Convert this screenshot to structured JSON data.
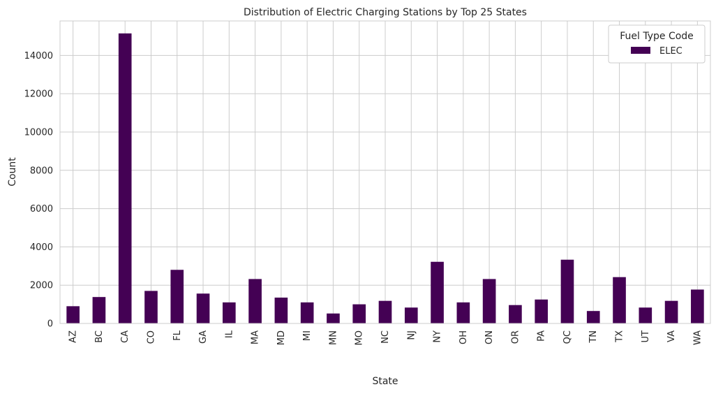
{
  "chart_data": {
    "type": "bar",
    "title": "Distribution of Electric Charging Stations by Top 25 States",
    "xlabel": "State",
    "ylabel": "Count",
    "categories": [
      "AZ",
      "BC",
      "CA",
      "CO",
      "FL",
      "GA",
      "IL",
      "MA",
      "MD",
      "MI",
      "MN",
      "MO",
      "NC",
      "NJ",
      "NY",
      "OH",
      "ON",
      "OR",
      "PA",
      "QC",
      "TN",
      "TX",
      "UT",
      "VA",
      "WA"
    ],
    "series": [
      {
        "name": "ELEC",
        "color": "#440154",
        "values": [
          900,
          1380,
          15150,
          1700,
          2800,
          1560,
          1100,
          2320,
          1350,
          1100,
          520,
          1000,
          1180,
          830,
          3220,
          1100,
          2320,
          960,
          1250,
          3330,
          650,
          2420,
          830,
          1180,
          1770
        ]
      }
    ],
    "ylim": [
      0,
      15800
    ],
    "yticks": [
      0,
      2000,
      4000,
      6000,
      8000,
      10000,
      12000,
      14000
    ],
    "grid": true,
    "legend": {
      "title": "Fuel Type Code",
      "placement": "top-right"
    }
  }
}
